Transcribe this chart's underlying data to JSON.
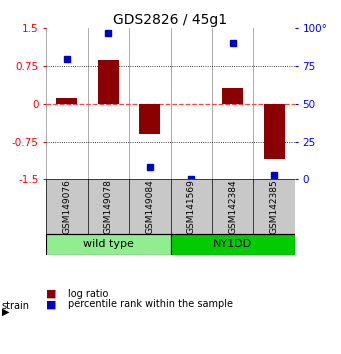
{
  "title": "GDS2826 / 45g1",
  "samples": [
    "GSM149076",
    "GSM149078",
    "GSM149084",
    "GSM141569",
    "GSM142384",
    "GSM142385"
  ],
  "log_ratios": [
    0.12,
    0.88,
    -0.6,
    0.0,
    0.32,
    -1.1
  ],
  "percentile_ranks": [
    80,
    97,
    8,
    0,
    90,
    3
  ],
  "groups": [
    {
      "label": "wild type",
      "samples": [
        0,
        1,
        2
      ],
      "color": "#90EE90"
    },
    {
      "label": "NY1DD",
      "samples": [
        3,
        4,
        5
      ],
      "color": "#00CC00"
    }
  ],
  "bar_color": "#8B0000",
  "dot_color": "#0000CC",
  "ylim": [
    -1.5,
    1.5
  ],
  "yticks_left": [
    -1.5,
    -0.75,
    0,
    0.75,
    1.5
  ],
  "yticks_right": [
    0,
    25,
    50,
    75,
    100
  ],
  "hlines": [
    0.75,
    -0.75
  ],
  "zero_line_color": "#FF4444",
  "background_color": "#ffffff",
  "title_fontsize": 10,
  "tick_fontsize": 7.5,
  "sample_label_fontsize": 6.5,
  "strain_label_fontsize": 8,
  "legend_fontsize": 7,
  "label_bg": "#C8C8C8",
  "wild_type_color": "#AAFFAA",
  "ny1dd_color": "#44DD44"
}
